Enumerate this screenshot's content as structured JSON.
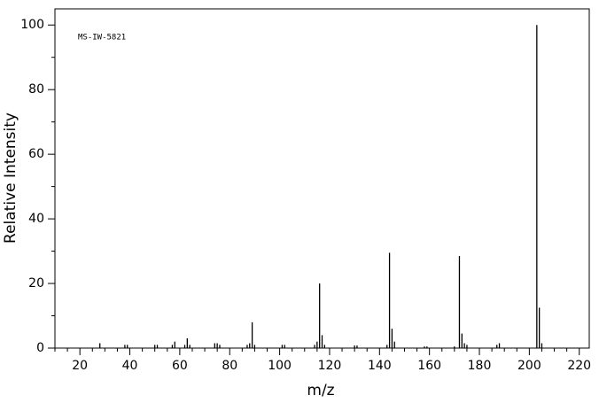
{
  "chart_data": {
    "type": "stem",
    "annotation": "MS-IW-5821",
    "xlabel": "m/z",
    "ylabel": "Relative Intensity",
    "x": [
      28,
      38,
      39,
      50,
      51,
      57,
      58,
      62,
      63,
      64,
      74,
      75,
      76,
      87,
      88,
      89,
      90,
      101,
      102,
      114,
      115,
      116,
      117,
      118,
      130,
      131,
      143,
      144,
      145,
      146,
      158,
      159,
      170,
      172,
      173,
      174,
      175,
      187,
      188,
      203,
      204,
      205
    ],
    "values": [
      1.5,
      1,
      1,
      1,
      1,
      1,
      2,
      1,
      3,
      1,
      1.5,
      1.5,
      1,
      1,
      1.5,
      8,
      1,
      1,
      1,
      1,
      2,
      20,
      4,
      1,
      0.8,
      0.8,
      1,
      29.5,
      6,
      2,
      0.5,
      0.5,
      0.5,
      28.5,
      4.5,
      1.5,
      1,
      1,
      1.5,
      100,
      12.5,
      1.5
    ],
    "color": "#000000",
    "xlim": [
      10,
      224
    ],
    "ylim": [
      0,
      105
    ],
    "xticks": [
      20,
      40,
      60,
      80,
      100,
      120,
      140,
      160,
      180,
      200,
      220
    ],
    "xticks_minor": [
      10,
      15,
      25,
      30,
      35,
      45,
      50,
      55,
      65,
      70,
      75,
      85,
      90,
      95,
      105,
      110,
      115,
      125,
      130,
      135,
      145,
      150,
      155,
      165,
      170,
      175,
      185,
      190,
      195,
      205,
      210,
      215
    ],
    "yticks": [
      0,
      20,
      40,
      60,
      80,
      100
    ],
    "yticks_minor": [
      10,
      30,
      50,
      70,
      90
    ]
  }
}
